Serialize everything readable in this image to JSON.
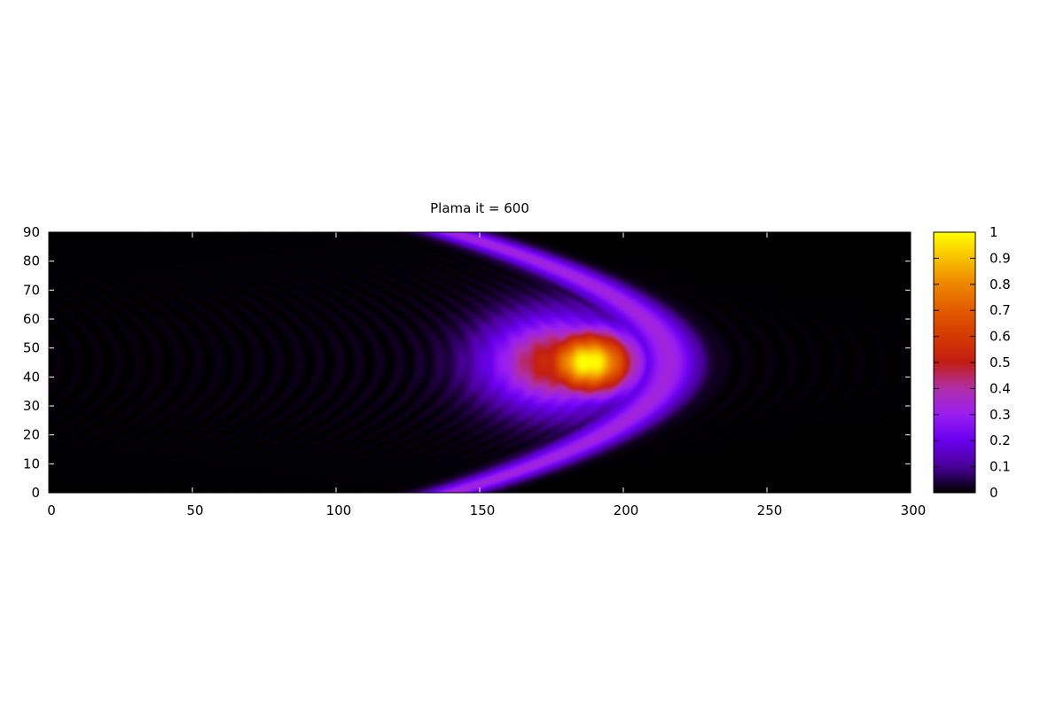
{
  "chart_data": {
    "type": "heatmap",
    "title": "Plama it = 600",
    "xlabel": "",
    "ylabel": "",
    "xlim": [
      0,
      300
    ],
    "ylim": [
      0,
      90
    ],
    "x_ticks": [
      0,
      50,
      100,
      150,
      200,
      250,
      300
    ],
    "y_ticks": [
      0,
      10,
      20,
      30,
      40,
      50,
      60,
      70,
      80,
      90
    ],
    "colorbar": {
      "range": [
        0,
        1
      ],
      "ticks": [
        0,
        0.1,
        0.2,
        0.3,
        0.4,
        0.5,
        0.6,
        0.7,
        0.8,
        0.9,
        1
      ],
      "palette": "gnuplot",
      "colormap_stops": [
        {
          "value": 0.0,
          "color": "#000000"
        },
        {
          "value": 0.1,
          "color": "#4a0099"
        },
        {
          "value": 0.2,
          "color": "#6a00f0"
        },
        {
          "value": 0.3,
          "color": "#9a1ef0"
        },
        {
          "value": 0.4,
          "color": "#b02fa8"
        },
        {
          "value": 0.5,
          "color": "#c21e14"
        },
        {
          "value": 0.6,
          "color": "#d43a00"
        },
        {
          "value": 0.7,
          "color": "#e25a00"
        },
        {
          "value": 0.8,
          "color": "#ee8600"
        },
        {
          "value": 0.9,
          "color": "#f8bf00"
        },
        {
          "value": 1.0,
          "color": "#ffff00"
        }
      ]
    },
    "field": {
      "description": "Intensity field: bright arc-shaped wavefront centred at y=45, tip near x=220, peak value about 1.0 near x=188, y=45; faint interference rings behind the front.",
      "center_y": 45,
      "front_tip_x": 220,
      "peak_x": 188,
      "peak_value": 1.0
    }
  }
}
